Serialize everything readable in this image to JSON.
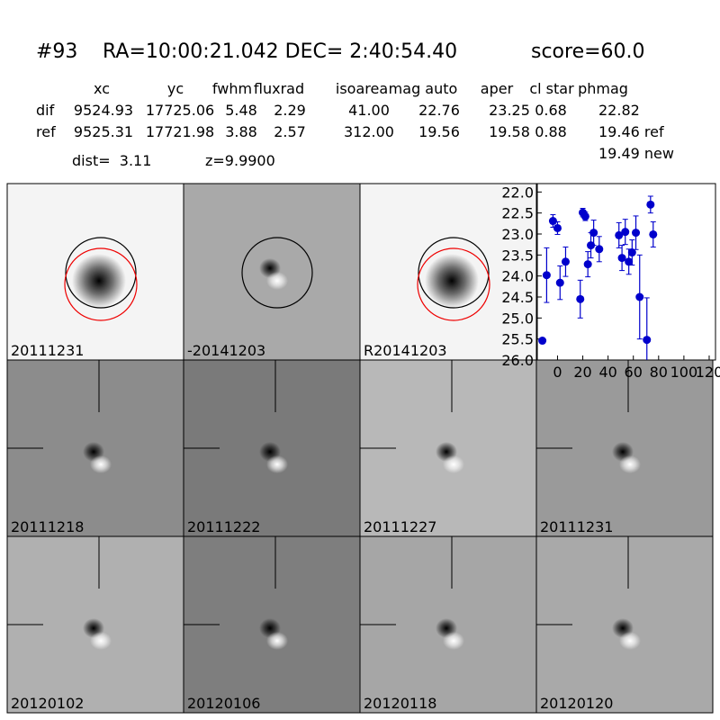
{
  "header": {
    "id": "#93",
    "coords": "RA=10:00:21.042 DEC= 2:40:54.40",
    "score": "score=60.0"
  },
  "table": {
    "columns": [
      "xc",
      "yc",
      "fwhm",
      "fluxrad",
      "isoarea",
      "mag auto",
      "aper",
      "cl star",
      "phmag"
    ],
    "rows": [
      [
        "dif",
        "9524.93",
        "17725.06",
        "5.48",
        "2.29",
        "41.00",
        "22.76",
        "23.25",
        "0.68",
        "22.82"
      ],
      [
        "ref",
        "9525.31",
        "17721.98",
        "3.88",
        "2.57",
        "312.00",
        "19.56",
        "19.58",
        "0.88",
        "19.46 ref"
      ]
    ],
    "extra": "19.49 new"
  },
  "dist": "dist=  3.11",
  "z": "z=9.9900",
  "stamps": [
    "20111231",
    "-20141203",
    "R20141203",
    "20111218",
    "20111222",
    "20111227",
    "20111231",
    "20120102",
    "20120106",
    "20120118",
    "20120120"
  ],
  "chart_data": {
    "type": "scatter",
    "color": "#0000cc",
    "y_inverted": true,
    "x": [
      -12,
      -8.6,
      -3.6,
      0,
      2,
      6.4,
      18,
      20,
      22,
      24,
      26.4,
      28.6,
      33,
      48.6,
      51,
      53.6,
      56.4,
      59,
      62,
      65,
      70.7,
      73.6,
      75.7
    ],
    "values": [
      25.54,
      23.98,
      22.69,
      22.86,
      24.16,
      23.66,
      24.55,
      22.49,
      22.58,
      23.72,
      23.27,
      22.97,
      23.36,
      23.03,
      23.57,
      22.95,
      23.66,
      23.44,
      22.97,
      24.5,
      25.52,
      22.3,
      23.01
    ],
    "errors": [
      0.05,
      0.65,
      0.15,
      0.15,
      0.4,
      0.35,
      0.45,
      0.1,
      0.1,
      0.3,
      0.3,
      0.3,
      0.3,
      0.3,
      0.3,
      0.3,
      0.3,
      0.3,
      0.4,
      1.0,
      1.0,
      0.2,
      0.3
    ],
    "xlim": [
      -16,
      125
    ],
    "ylim": [
      21.8,
      26
    ],
    "xticks": [
      0,
      20,
      40,
      60,
      80,
      100,
      120
    ],
    "yticks": [
      {
        "value": 22,
        "label": "22.0"
      },
      {
        "value": 22.5,
        "label": "22.5"
      },
      {
        "value": 23,
        "label": "23.0"
      },
      {
        "value": 23.5,
        "label": "23.5"
      },
      {
        "value": 24,
        "label": "24.0"
      },
      {
        "value": 24.5,
        "label": "24.5"
      },
      {
        "value": 25,
        "label": "25.0"
      },
      {
        "value": 25.5,
        "label": "25.5"
      },
      {
        "value": 26,
        "label": "26.0"
      }
    ]
  }
}
